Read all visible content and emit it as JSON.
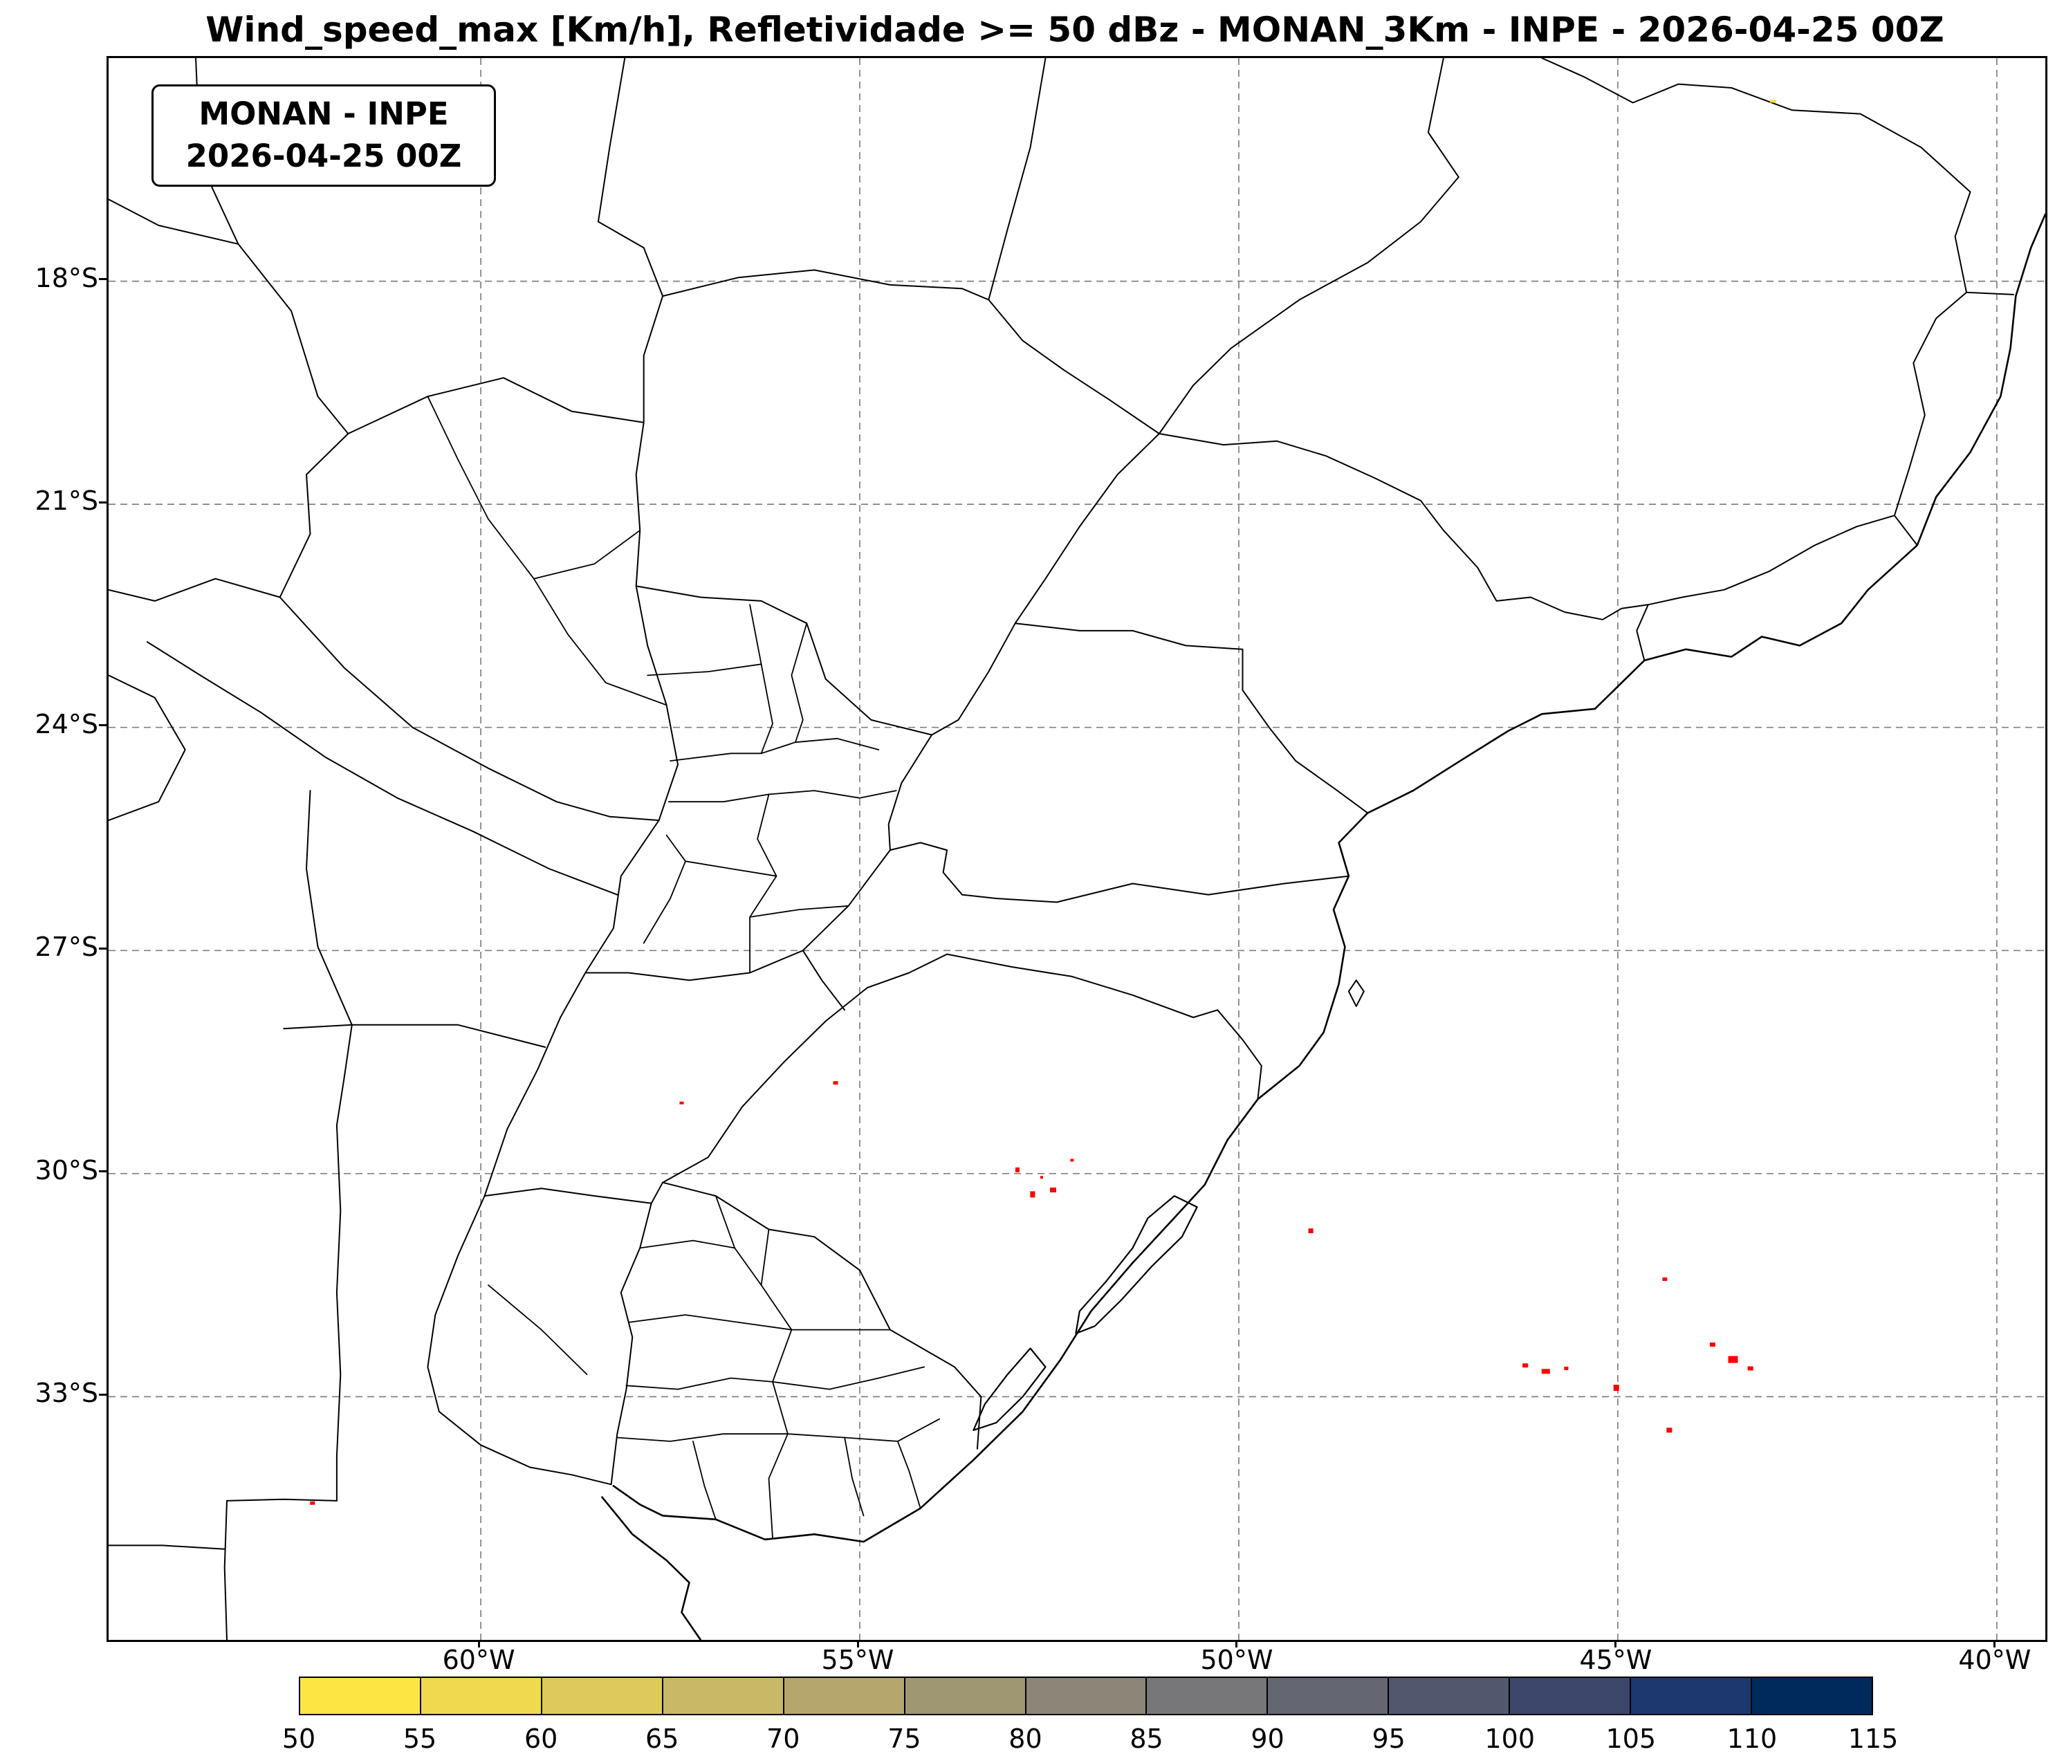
{
  "title": "Wind_speed_max [Km/h], Refletividade >= 50 dBz - MONAN_3Km - INPE - 2026-04-25 00Z",
  "info_box": {
    "line1": "MONAN - INPE",
    "line2": "2026-04-25 00Z"
  },
  "chart_data": {
    "type": "map-scatter",
    "title": "Wind_speed_max [Km/h], Refletividade >= 50 dBz - MONAN_3Km - INPE - 2026-04-25 00Z",
    "variable": "Wind_speed_max [Km/h]",
    "threshold": "Refletividade >= 50 dBz",
    "model": "MONAN_3Km",
    "source": "INPE",
    "valid_time": "2026-04-25 00Z",
    "grid": "dashed",
    "extent": {
      "lon": [
        -64.91,
        -39.36
      ],
      "lat": [
        -36.27,
        -15.0
      ]
    },
    "x_ticks": {
      "labels": [
        "60°W",
        "55°W",
        "50°W",
        "45°W",
        "40°W"
      ],
      "lons": [
        -60,
        -55,
        -50,
        -45,
        -40
      ]
    },
    "y_ticks": {
      "labels": [
        "18°S",
        "21°S",
        "24°S",
        "27°S",
        "30°S",
        "33°S"
      ],
      "lats": [
        -18,
        -21,
        -24,
        -27,
        -30,
        -33
      ]
    },
    "colorbar": {
      "orientation": "horizontal",
      "tick_labels": [
        "50",
        "55",
        "60",
        "65",
        "70",
        "75",
        "80",
        "85",
        "90",
        "95",
        "100",
        "105",
        "110",
        "115"
      ],
      "values": [
        50,
        55,
        60,
        65,
        70,
        75,
        80,
        85,
        90,
        95,
        100,
        105,
        110,
        115
      ],
      "segment_colors": [
        "#fde644",
        "#efda4f",
        "#ddca5b",
        "#c9b865",
        "#b4a66d",
        "#9f9772",
        "#8b8678",
        "#777678",
        "#646671",
        "#51586e",
        "#3d476c",
        "#1c386e",
        "#002a5c"
      ]
    },
    "marker_color": "#ff0000",
    "points": [
      {
        "lon": -57.35,
        "lat": -29.05,
        "w": 6,
        "h": 4
      },
      {
        "lon": -55.32,
        "lat": -28.78,
        "w": 7,
        "h": 5
      },
      {
        "lon": -52.92,
        "lat": -29.95,
        "w": 6,
        "h": 7
      },
      {
        "lon": -52.72,
        "lat": -30.28,
        "w": 7,
        "h": 9
      },
      {
        "lon": -52.45,
        "lat": -30.22,
        "w": 9,
        "h": 7
      },
      {
        "lon": -52.6,
        "lat": -30.05,
        "w": 4,
        "h": 4
      },
      {
        "lon": -52.2,
        "lat": -29.82,
        "w": 5,
        "h": 4
      },
      {
        "lon": -49.05,
        "lat": -30.77,
        "w": 7,
        "h": 7
      },
      {
        "lon": -44.38,
        "lat": -31.42,
        "w": 7,
        "h": 5
      },
      {
        "lon": -46.22,
        "lat": -32.58,
        "w": 8,
        "h": 6
      },
      {
        "lon": -45.95,
        "lat": -32.66,
        "w": 12,
        "h": 7
      },
      {
        "lon": -45.68,
        "lat": -32.62,
        "w": 6,
        "h": 5
      },
      {
        "lon": -45.02,
        "lat": -32.88,
        "w": 8,
        "h": 9
      },
      {
        "lon": -44.32,
        "lat": -33.45,
        "w": 8,
        "h": 7
      },
      {
        "lon": -43.75,
        "lat": -32.3,
        "w": 8,
        "h": 6
      },
      {
        "lon": -43.48,
        "lat": -32.5,
        "w": 14,
        "h": 10
      },
      {
        "lon": -43.25,
        "lat": -32.62,
        "w": 8,
        "h": 6
      },
      {
        "lon": -62.22,
        "lat": -34.43,
        "w": 7,
        "h": 5
      },
      {
        "lon": -42.95,
        "lat": -15.58,
        "w": 9,
        "h": 4,
        "color": "#f2e33a"
      }
    ]
  }
}
